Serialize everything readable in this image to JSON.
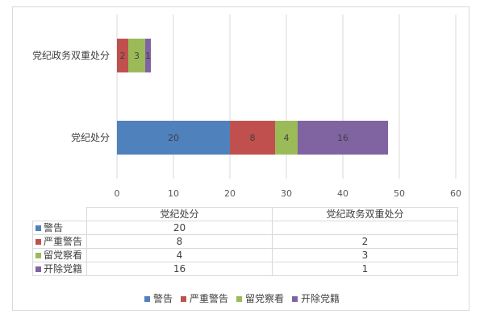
{
  "chart_data": {
    "type": "bar",
    "orientation": "horizontal",
    "stacked": true,
    "categories": [
      "党纪处分",
      "党纪政务双重处分"
    ],
    "series": [
      {
        "name": "警告",
        "color": "#4f81bd",
        "values": [
          20,
          null
        ]
      },
      {
        "name": "严重警告",
        "color": "#c0504d",
        "values": [
          8,
          2
        ]
      },
      {
        "name": "留党察看",
        "color": "#9bbb59",
        "values": [
          4,
          3
        ]
      },
      {
        "name": "开除党籍",
        "color": "#8064a2",
        "values": [
          16,
          1
        ]
      }
    ],
    "xlim": [
      0,
      60
    ],
    "x_ticks": [
      "0",
      "10",
      "20",
      "30",
      "40",
      "50",
      "60"
    ],
    "grid": true,
    "legend": "bottom",
    "data_table": true
  }
}
